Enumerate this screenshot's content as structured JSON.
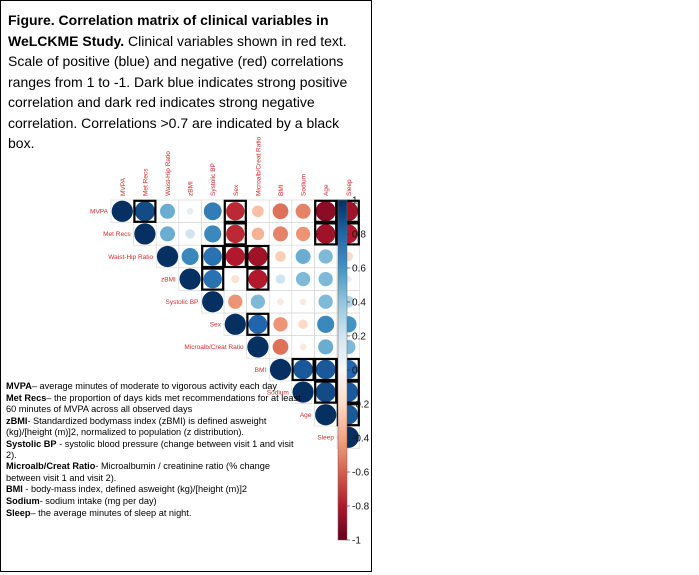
{
  "caption": {
    "title": "Figure. Correlation matrix of clinical variables in WeLCKME Study.",
    "body": "Clinical variables shown in red text. Scale of positive (blue) and negative (red) correlations ranges from 1 to -1. Dark blue indicates strong positive correlation and dark red indicates strong negative correlation. Correlations >0.7 are indicated by a black box."
  },
  "chart_data": {
    "type": "heatmap",
    "layout": "upper-triangle circles",
    "variables": [
      "MVPA",
      "Met Recs",
      "Waist-Hip Ratio",
      "zBMI",
      "Systolic BP",
      "Sex",
      "Microalb/Creat Ratio",
      "BMI",
      "Sodium",
      "Age",
      "Sleep"
    ],
    "matrix": [
      [
        1,
        0.9,
        0.5,
        0.1,
        0.7,
        -0.75,
        -0.3,
        -0.55,
        -0.5,
        -0.9,
        -0.85
      ],
      [
        0.9,
        1,
        0.5,
        0.2,
        0.65,
        -0.75,
        -0.35,
        -0.5,
        -0.45,
        -0.85,
        -0.8
      ],
      [
        0.5,
        0.5,
        1,
        0.65,
        0.75,
        -0.8,
        -0.85,
        -0.25,
        0.5,
        0.45,
        -0.2
      ],
      [
        0.1,
        0.2,
        0.65,
        1,
        0.75,
        -0.15,
        -0.8,
        0.2,
        0.45,
        0.45,
        0.1
      ],
      [
        0.7,
        0.65,
        0.75,
        0.75,
        1,
        -0.45,
        0.45,
        -0.1,
        -0.1,
        0.45,
        0.3
      ],
      [
        -0.75,
        -0.75,
        -0.8,
        -0.15,
        -0.45,
        1,
        0.8,
        -0.45,
        -0.2,
        0.65,
        0.6
      ],
      [
        -0.3,
        -0.35,
        -0.85,
        -0.8,
        0.45,
        0.8,
        1,
        -0.55,
        -0.1,
        0.5,
        0.45
      ],
      [
        -0.55,
        -0.5,
        -0.25,
        0.2,
        -0.1,
        -0.45,
        -0.55,
        1,
        0.85,
        0.85,
        0.8
      ],
      [
        -0.5,
        -0.45,
        0.5,
        0.45,
        -0.1,
        -0.2,
        -0.1,
        0.85,
        1,
        0.9,
        0.85
      ],
      [
        -0.9,
        -0.85,
        0.45,
        0.45,
        0.45,
        0.65,
        0.5,
        0.85,
        0.9,
        1,
        0.85
      ],
      [
        -0.85,
        -0.8,
        -0.2,
        0.1,
        0.3,
        0.6,
        0.45,
        0.8,
        0.85,
        0.85,
        1
      ]
    ],
    "boxed_threshold": 0.7,
    "scale": {
      "min": -1,
      "max": 1,
      "ticks": [
        "1",
        "0.8",
        "0.6",
        "0.4",
        "0.2",
        "0",
        "-0.2",
        "-0.4",
        "-0.6",
        "-0.8",
        "-1"
      ]
    },
    "label_color": "#d42a2a",
    "colors": {
      "negative": "#67001f",
      "neutral": "#f7f7f7",
      "positive": "#053061",
      "box": "#000000",
      "grid": "#d6d6d6"
    }
  },
  "legend": [
    {
      "term": "MVPA",
      "text": "– average minutes of moderate to vigorous activity each day"
    },
    {
      "term": "Met Recs",
      "text": "– the proportion of days kids met recommendations for at least 60 minutes of MVPA across all observed days"
    },
    {
      "term": "zBMI",
      "text": "- Standardized bodymass index (zBMI) is defined asweight (kg)/[height (m)]2, normalized to population (z distribution)."
    },
    {
      "term": "Systolic BP",
      "text": " - systolic blood pressure (change between visit 1 and visit 2)."
    },
    {
      "term": "Microalb/Creat Ratio",
      "text": "- Microalbumin / creatinine ratio (% change between visit 1 and visit 2)."
    },
    {
      "term": "BMI",
      "text": " - body-mass index, defined asweight (kg)/[height (m)]2"
    },
    {
      "term": "Sodium",
      "text": "- sodium intake (mg per day)"
    },
    {
      "term": "Sleep",
      "text": "– the average minutes of sleep at night."
    }
  ]
}
